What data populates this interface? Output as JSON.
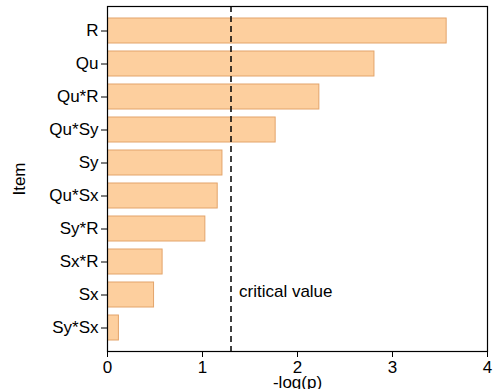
{
  "chart_data": {
    "type": "bar",
    "orientation": "horizontal",
    "categories": [
      "R",
      "Qu",
      "Qu*R",
      "Qu*Sy",
      "Sy",
      "Qu*Sx",
      "Sy*R",
      "Sx*R",
      "Sx",
      "Sy*Sx"
    ],
    "values": [
      3.57,
      2.81,
      2.23,
      1.77,
      1.21,
      1.16,
      1.03,
      0.58,
      0.49,
      0.12
    ],
    "color": "#fdcf9e",
    "x_label": "-log(p)",
    "y_label": "Item",
    "xlim": [
      0,
      4
    ],
    "xticks": [
      0,
      1,
      2,
      3,
      4
    ],
    "grid": false,
    "annotations": [
      {
        "text": "critical value",
        "x": 1.3,
        "line_style": "dashed"
      }
    ]
  }
}
